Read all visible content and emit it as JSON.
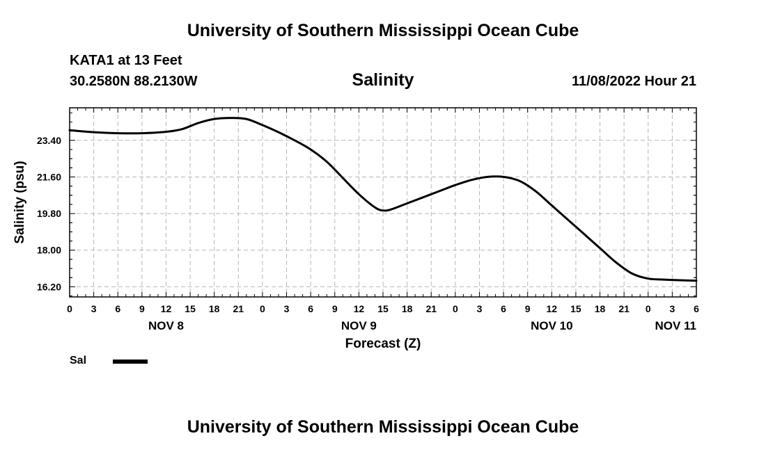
{
  "header": {
    "title": "University of Southern Mississippi Ocean Cube",
    "station_name": "KATA1 at 13 Feet",
    "station_coords": "30.2580N  88.2130W",
    "timestamp": "11/08/2022 Hour 21"
  },
  "footer": {
    "title": "University of Southern Mississippi Ocean Cube"
  },
  "legend": {
    "label": "Sal",
    "color": "#000000"
  },
  "chart_data": {
    "type": "line",
    "title": "Salinity",
    "xlabel": "Forecast (Z)",
    "ylabel": "Salinity (psu)",
    "x_unit": "hours since NOV 8 00Z",
    "xlim": [
      0,
      78
    ],
    "ylim": [
      15.7,
      25.0
    ],
    "yticks": [
      16.2,
      18.0,
      19.8,
      21.6,
      23.4
    ],
    "ytick_labels": [
      "16.20",
      "18.00",
      "19.80",
      "21.60",
      "23.40"
    ],
    "xticks": [
      0,
      3,
      6,
      9,
      12,
      15,
      18,
      21,
      24,
      27,
      30,
      33,
      36,
      39,
      42,
      45,
      48,
      51,
      54,
      57,
      60,
      63,
      66,
      69,
      72,
      75,
      78
    ],
    "xtick_labels": [
      "0",
      "3",
      "6",
      "9",
      "12",
      "15",
      "18",
      "21",
      "0",
      "3",
      "6",
      "9",
      "12",
      "15",
      "18",
      "21",
      "0",
      "3",
      "6",
      "9",
      "12",
      "15",
      "18",
      "21",
      "0",
      "3",
      "6"
    ],
    "date_labels": [
      {
        "x": 12,
        "label": "NOV 8"
      },
      {
        "x": 36,
        "label": "NOV 9"
      },
      {
        "x": 60,
        "label": "NOV 10"
      },
      {
        "x": 78,
        "label": "NOV 11"
      }
    ],
    "grid": true,
    "series": [
      {
        "name": "Sal",
        "x": [
          0,
          3,
          6,
          9,
          12,
          14,
          16,
          18,
          20,
          22,
          24,
          26,
          28,
          30,
          32,
          34,
          36,
          38,
          39,
          40,
          42,
          44,
          46,
          48,
          50,
          52,
          54,
          56,
          58,
          60,
          62,
          64,
          66,
          68,
          70,
          72,
          74,
          76,
          78
        ],
        "values": [
          23.9,
          23.8,
          23.75,
          23.75,
          23.82,
          23.95,
          24.25,
          24.45,
          24.5,
          24.45,
          24.15,
          23.8,
          23.4,
          22.95,
          22.35,
          21.55,
          20.75,
          20.1,
          19.95,
          20.0,
          20.3,
          20.6,
          20.9,
          21.2,
          21.45,
          21.6,
          21.6,
          21.4,
          20.9,
          20.2,
          19.5,
          18.8,
          18.1,
          17.4,
          16.85,
          16.6,
          16.55,
          16.52,
          16.5
        ]
      }
    ]
  }
}
